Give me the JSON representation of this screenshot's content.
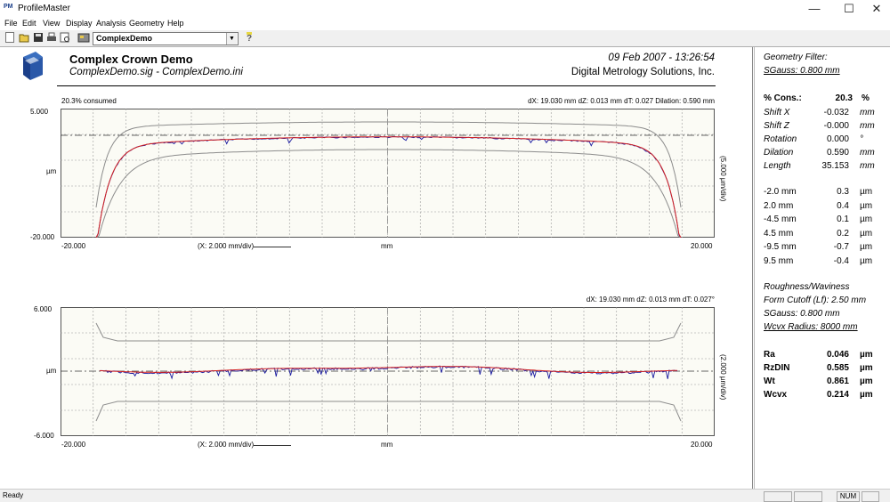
{
  "app": {
    "title": "ProfileMaster",
    "logo_text": "PM"
  },
  "window_controls": {
    "minimize": "—",
    "maximize": "☐",
    "close": "✕"
  },
  "menu": [
    "File",
    "Edit",
    "View",
    "Display",
    "Analysis",
    "Geometry",
    "Help"
  ],
  "toolbar": {
    "combo_value": "ComplexDemo",
    "icons": [
      "new-icon",
      "open-icon",
      "save-icon",
      "print-icon",
      "print-preview-icon",
      "copy-icon",
      "settings-icon",
      "help-icon"
    ]
  },
  "header": {
    "title": "Complex Crown Demo",
    "files": "ComplexDemo.sig  -  ComplexDemo.ini",
    "datetime": "09 Feb 2007 - 13:26:54",
    "company": "Digital Metrology Solutions, Inc."
  },
  "chart1": {
    "consumed": "20.3% consumed",
    "info": "dX: 19.030 mm     dZ: 0.013 mm     dT: 0.027     Dilation: 0.590 mm",
    "y_top": "5.000",
    "y_mid": "µm",
    "y_bottom": "-20.000",
    "x_left": "-20.000",
    "x_right": "20.000",
    "x_mid": "mm",
    "x_scale": "(X: 2.000 mm/div)",
    "y_scale": "(5.000 µm/div)"
  },
  "chart2": {
    "info": "dX: 19.030 mm     dZ: 0.013 mm     dT: 0.027°",
    "y_top": "6.000",
    "y_mid": "µm",
    "y_bottom": "-6.000",
    "x_left": "-20.000",
    "x_right": "20.000",
    "x_mid": "mm",
    "x_scale": "(X: 2.000 mm/div)",
    "y_scale": "(2.000 µm/div)"
  },
  "right_panel": {
    "geom_filter_label": "Geometry Filter:",
    "geom_filter_value": "SGauss: 0.800 mm",
    "cons": {
      "label": "% Cons.:",
      "value": "20.3",
      "unit": "%"
    },
    "params": [
      {
        "label": "Shift X",
        "value": "-0.032",
        "unit": "mm"
      },
      {
        "label": "Shift Z",
        "value": "-0.000",
        "unit": "mm"
      },
      {
        "label": "Rotation",
        "value": "0.000",
        "unit": "°"
      },
      {
        "label": "Dilation",
        "value": "0.590",
        "unit": "mm"
      },
      {
        "label": "Length",
        "value": "35.153",
        "unit": "mm"
      }
    ],
    "positions": [
      {
        "label": "-2.0 mm",
        "value": "0.3",
        "unit": "µm"
      },
      {
        "label": "2.0 mm",
        "value": "0.4",
        "unit": "µm"
      },
      {
        "label": "-4.5 mm",
        "value": "0.1",
        "unit": "µm"
      },
      {
        "label": "4.5 mm",
        "value": "0.2",
        "unit": "µm"
      },
      {
        "label": "-9.5 mm",
        "value": "-0.7",
        "unit": "µm"
      },
      {
        "label": "9.5 mm",
        "value": "-0.4",
        "unit": "µm"
      }
    ],
    "rw_title": "Roughness/Waviness",
    "form_cutoff": "Form Cutoff (Lf): 2.50 mm",
    "sgauss": "SGauss: 0.800 mm",
    "wcvx": "Wcvx Radius: 8000 mm",
    "results": [
      {
        "label": "Ra",
        "value": "0.046",
        "unit": "µm"
      },
      {
        "label": "RzDIN",
        "value": "0.585",
        "unit": "µm"
      },
      {
        "label": "Wt",
        "value": "0.861",
        "unit": "µm"
      },
      {
        "label": "Wcvx",
        "value": "0.214",
        "unit": "µm"
      }
    ]
  },
  "status": {
    "text": "Ready",
    "num": "NUM"
  },
  "colors": {
    "measured": "#1a1aa0",
    "fitted": "#d42020",
    "tolerance": "#8c8c8c",
    "grid": "#9a9a9a"
  }
}
